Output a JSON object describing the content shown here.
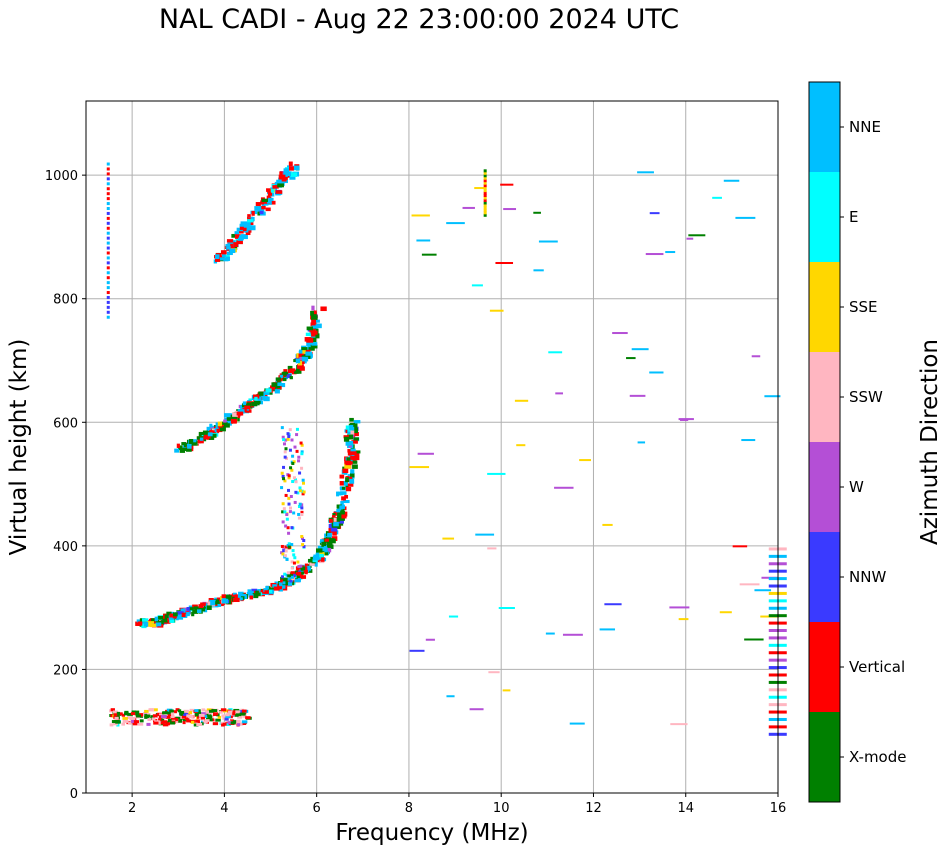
{
  "figure": {
    "title": "NAL CADI - Aug 22 23:00:00 2024 UTC"
  },
  "chart_data": {
    "type": "scatter",
    "title": "NAL CADI - Aug 22 23:00:00 2024 UTC",
    "xlabel": "Frequency (MHz)",
    "ylabel": "Virtual height (km)",
    "xlim": [
      1.0,
      16.0
    ],
    "ylim": [
      0,
      1120
    ],
    "xticks": [
      2,
      4,
      6,
      8,
      10,
      12,
      14,
      16
    ],
    "yticks": [
      0,
      200,
      400,
      600,
      800,
      1000
    ],
    "grid": true,
    "colorbar": {
      "label": "Azimuth Direction",
      "categories": [
        {
          "name": "X-mode",
          "color": "#008000"
        },
        {
          "name": "Vertical",
          "color": "#ff0000"
        },
        {
          "name": "NNW",
          "color": "#3a3aff"
        },
        {
          "name": "W",
          "color": "#b44fd6"
        },
        {
          "name": "SSW",
          "color": "#ffb6c1"
        },
        {
          "name": "SSE",
          "color": "#ffd700"
        },
        {
          "name": "E",
          "color": "#00ffff"
        },
        {
          "name": "NNE",
          "color": "#00bfff"
        }
      ]
    },
    "traces": [
      {
        "name": "E-layer echoes",
        "freq_range": [
          1.5,
          4.5
        ],
        "height_range": [
          110,
          135
        ],
        "dominant": [
          "SSW",
          "Vertical",
          "X-mode"
        ]
      },
      {
        "name": "F-layer lower trace",
        "points": [
          [
            2.1,
            275
          ],
          [
            2.5,
            275
          ],
          [
            3.0,
            290
          ],
          [
            3.5,
            300
          ],
          [
            4.0,
            315
          ],
          [
            4.5,
            320
          ],
          [
            5.0,
            330
          ],
          [
            5.5,
            350
          ],
          [
            6.0,
            380
          ],
          [
            6.3,
            420
          ],
          [
            6.5,
            470
          ],
          [
            6.7,
            540
          ],
          [
            6.7,
            600
          ]
        ],
        "dominant": [
          "Vertical",
          "NNE",
          "X-mode"
        ]
      },
      {
        "name": "F-layer 2nd hop",
        "points": [
          [
            3.0,
            555
          ],
          [
            3.5,
            575
          ],
          [
            4.0,
            600
          ],
          [
            4.5,
            630
          ],
          [
            5.0,
            655
          ],
          [
            5.5,
            690
          ],
          [
            5.8,
            720
          ],
          [
            6.0,
            790
          ]
        ],
        "dominant": [
          "Vertical",
          "X-mode",
          "NNE"
        ]
      },
      {
        "name": "F-layer 3rd hop",
        "points": [
          [
            3.8,
            860
          ],
          [
            4.0,
            875
          ],
          [
            4.2,
            895
          ],
          [
            4.5,
            920
          ],
          [
            4.8,
            950
          ],
          [
            5.0,
            975
          ],
          [
            5.3,
            1000
          ],
          [
            5.5,
            1015
          ]
        ],
        "dominant": [
          "Vertical",
          "NNE"
        ]
      },
      {
        "name": "Sporadic echoes",
        "freq_range": [
          8,
          16
        ],
        "height_range": [
          85,
          1010
        ],
        "dominant": [
          "SSE",
          "W",
          "NNE"
        ]
      }
    ]
  }
}
